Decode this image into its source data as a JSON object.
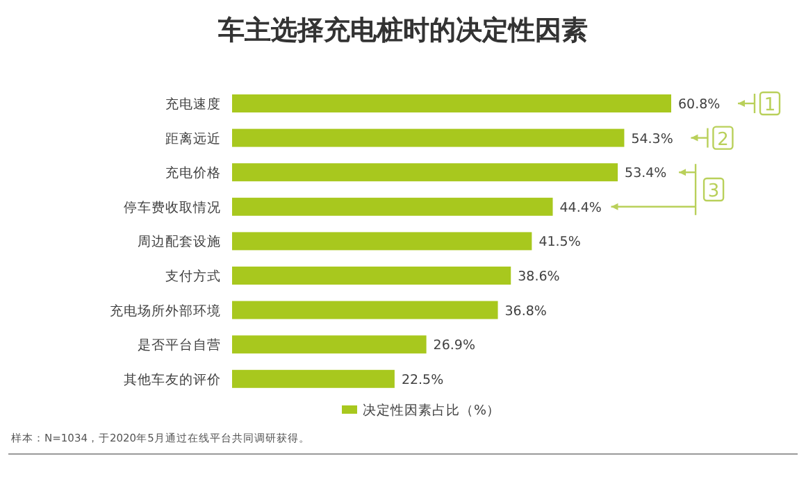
{
  "chart_data": {
    "type": "bar",
    "orientation": "horizontal",
    "title": "车主选择充电桩时的决定性因素",
    "categories": [
      "充电速度",
      "距离远近",
      "充电价格",
      "停车费收取情况",
      "周边配套设施",
      "支付方式",
      "充电场所外部环境",
      "是否平台自营",
      "其他车友的评价"
    ],
    "series": [
      {
        "name": "决定性因素占比（%）",
        "color": "#a8c81e",
        "values": [
          60.8,
          54.3,
          53.4,
          44.4,
          41.5,
          38.6,
          36.8,
          26.9,
          22.5
        ],
        "value_labels": [
          "60.8%",
          "54.3%",
          "53.4%",
          "44.4%",
          "41.5%",
          "38.6%",
          "36.8%",
          "26.9%",
          "22.5%"
        ]
      }
    ],
    "legend": "bottom",
    "annotations": [
      "1",
      "2",
      "3",
      "样本：N=1034，于2020年5月通过在线平台共同调研获得。"
    ]
  }
}
